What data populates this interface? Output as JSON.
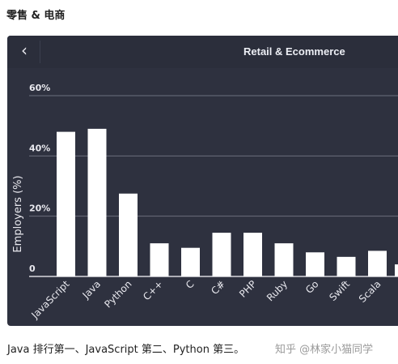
{
  "heading": "零售 & 电商",
  "panel": {
    "back_icon": "chevron-left-icon",
    "title": "Retail & Ecommerce"
  },
  "chart_data": {
    "type": "bar",
    "title": "Retail & Ecommerce",
    "ylabel": "Employers (%)",
    "xlabel": "",
    "ylim": [
      0,
      60
    ],
    "yticks": [
      "0",
      "20%",
      "40%",
      "60%"
    ],
    "grid": true,
    "categories": [
      "JavaScript",
      "Java",
      "Python",
      "C++",
      "C",
      "C#",
      "PHP",
      "Ruby",
      "Go",
      "Swift",
      "Scala"
    ],
    "values": [
      48,
      49,
      27.5,
      11,
      9.5,
      14.5,
      14.5,
      11,
      8,
      6.5,
      8.5
    ],
    "bar_color": "#ffffff",
    "background": "#2e313f"
  },
  "caption": "Java 排行第一、JavaScript 第二、Python 第三。",
  "watermark": "知乎 @林家小猫同学"
}
